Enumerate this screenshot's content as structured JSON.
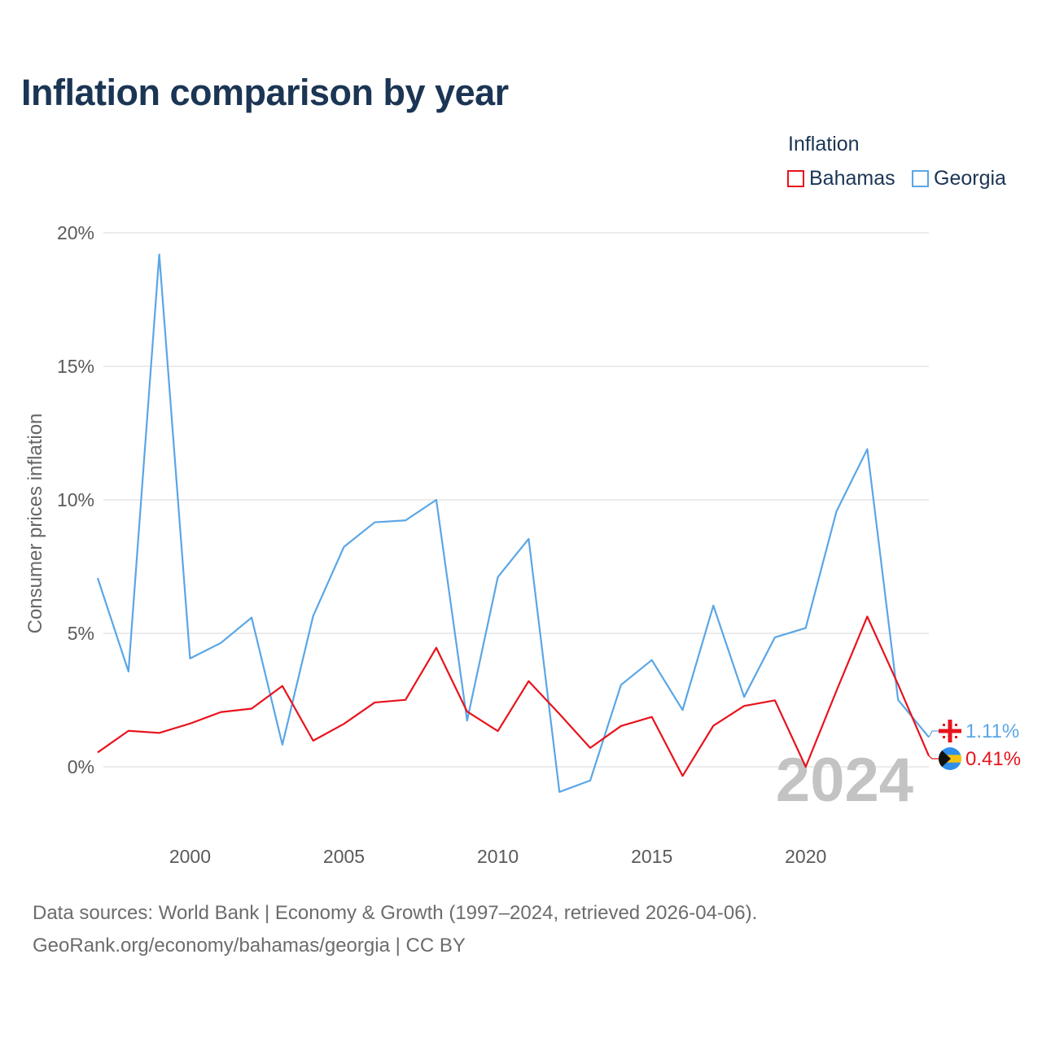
{
  "title": "Inflation comparison by year",
  "legend": {
    "title": "Inflation",
    "items": [
      {
        "name": "Bahamas",
        "color": "#e8131c"
      },
      {
        "name": "Georgia",
        "color": "#5aa6e6"
      }
    ]
  },
  "source": {
    "line1": "Data sources: World Bank | Economy & Growth (1997–2024, retrieved 2026-04-06).",
    "line2": "GeoRank.org/economy/bahamas/georgia | CC BY"
  },
  "chart_data": {
    "type": "line",
    "title": "Inflation comparison by year",
    "xlabel": "",
    "ylabel": "Consumer prices inflation",
    "x": [
      1997,
      1998,
      1999,
      2000,
      2001,
      2002,
      2003,
      2004,
      2005,
      2006,
      2007,
      2008,
      2009,
      2010,
      2011,
      2012,
      2013,
      2014,
      2015,
      2016,
      2017,
      2018,
      2019,
      2020,
      2021,
      2022,
      2023,
      2024
    ],
    "xlim": [
      1997,
      2024
    ],
    "ylim": [
      -3,
      20
    ],
    "xticks": [
      2000,
      2005,
      2010,
      2015,
      2020
    ],
    "xtick_labels": [
      "2000",
      "2005",
      "2010",
      "2015",
      "2020"
    ],
    "yticks": [
      0,
      5,
      10,
      15,
      20
    ],
    "ytick_labels": [
      "0%",
      "5%",
      "10%",
      "15%",
      "20%"
    ],
    "grid": true,
    "year_watermark": "2024",
    "series": [
      {
        "name": "Bahamas",
        "color": "#e8131c",
        "end_label": "0.41%",
        "values": [
          0.54,
          1.35,
          1.27,
          1.62,
          2.05,
          2.18,
          3.03,
          0.98,
          1.61,
          2.41,
          2.51,
          4.46,
          2.07,
          1.34,
          3.21,
          1.98,
          0.71,
          1.53,
          1.87,
          -0.34,
          1.54,
          2.28,
          2.49,
          0.0,
          2.85,
          5.63,
          3.09,
          0.41
        ]
      },
      {
        "name": "Georgia",
        "color": "#5aa6e6",
        "end_label": "1.11%",
        "values": [
          7.07,
          3.57,
          19.19,
          4.06,
          4.64,
          5.59,
          0.83,
          5.65,
          8.24,
          9.16,
          9.23,
          10.0,
          1.73,
          7.11,
          8.54,
          -0.94,
          -0.51,
          3.07,
          4.0,
          2.13,
          6.04,
          2.62,
          4.85,
          5.2,
          9.57,
          11.9,
          2.51,
          1.11
        ]
      }
    ]
  }
}
